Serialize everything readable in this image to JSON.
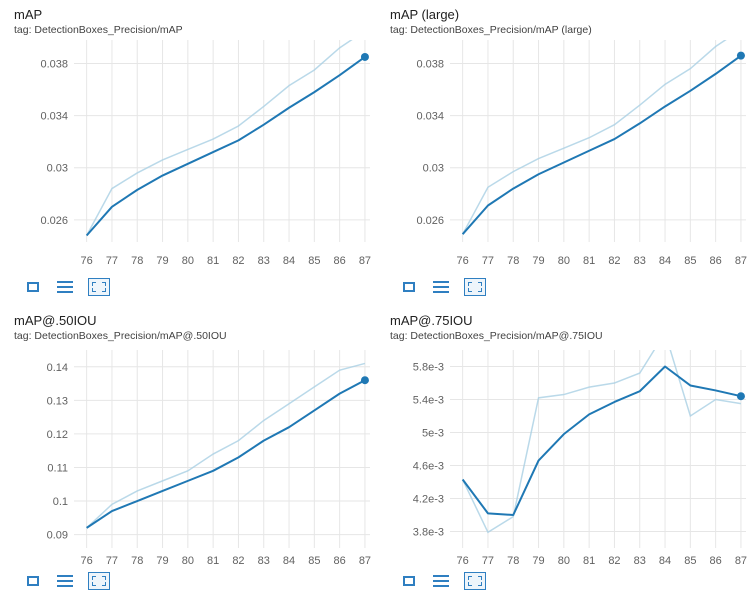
{
  "toolbar": {
    "fullscreen_icon": "fullscreen-icon",
    "legend_icon": "list-icon",
    "fit_domain_icon": "fit-domain-icon"
  },
  "colors": {
    "smoothed": "#1f78b4",
    "raw": "#a9cfe3",
    "grid": "#e6e6e6"
  },
  "chart_data": [
    {
      "type": "line",
      "title": "mAP",
      "tag": "tag: DetectionBoxes_Precision/mAP",
      "x": [
        76,
        77,
        78,
        79,
        80,
        81,
        82,
        83,
        84,
        85,
        86,
        87
      ],
      "xlim": [
        75.5,
        87.2
      ],
      "ylim": [
        0.0243,
        0.0398
      ],
      "yticks": [
        0.026,
        0.03,
        0.034,
        0.038
      ],
      "ytick_labels": [
        "0.026",
        "0.03",
        "0.034",
        "0.038"
      ],
      "series": [
        {
          "values": [
            0.0248,
            0.0284,
            0.0296,
            0.0306,
            0.0314,
            0.0322,
            0.0332,
            0.0347,
            0.0363,
            0.0375,
            0.0392,
            0.0405
          ]
        },
        {
          "values": [
            0.0248,
            0.027,
            0.0283,
            0.0294,
            0.0303,
            0.0312,
            0.0321,
            0.0333,
            0.0346,
            0.0358,
            0.0371,
            0.0385
          ]
        }
      ]
    },
    {
      "type": "line",
      "title": "mAP (large)",
      "tag": "tag: DetectionBoxes_Precision/mAP (large)",
      "x": [
        76,
        77,
        78,
        79,
        80,
        81,
        82,
        83,
        84,
        85,
        86,
        87
      ],
      "xlim": [
        75.5,
        87.2
      ],
      "ylim": [
        0.0243,
        0.0398
      ],
      "yticks": [
        0.026,
        0.03,
        0.034,
        0.038
      ],
      "ytick_labels": [
        "0.026",
        "0.03",
        "0.034",
        "0.038"
      ],
      "series": [
        {
          "values": [
            0.0249,
            0.0285,
            0.0297,
            0.0307,
            0.0315,
            0.0323,
            0.0333,
            0.0348,
            0.0364,
            0.0376,
            0.0393,
            0.0406
          ]
        },
        {
          "values": [
            0.0249,
            0.0271,
            0.0284,
            0.0295,
            0.0304,
            0.0313,
            0.0322,
            0.0334,
            0.0347,
            0.0359,
            0.0372,
            0.0386
          ]
        }
      ]
    },
    {
      "type": "line",
      "title": "mAP@.50IOU",
      "tag": "tag: DetectionBoxes_Precision/mAP@.50IOU",
      "x": [
        76,
        77,
        78,
        79,
        80,
        81,
        82,
        83,
        84,
        85,
        86,
        87
      ],
      "xlim": [
        75.5,
        87.2
      ],
      "ylim": [
        0.086,
        0.145
      ],
      "yticks": [
        0.09,
        0.1,
        0.11,
        0.12,
        0.13,
        0.14
      ],
      "ytick_labels": [
        "0.09",
        "0.1",
        "0.11",
        "0.12",
        "0.13",
        "0.14"
      ],
      "series": [
        {
          "values": [
            0.092,
            0.099,
            0.103,
            0.106,
            0.109,
            0.114,
            0.118,
            0.124,
            0.129,
            0.134,
            0.139,
            0.141
          ]
        },
        {
          "values": [
            0.092,
            0.097,
            0.1,
            0.103,
            0.106,
            0.109,
            0.113,
            0.118,
            0.122,
            0.127,
            0.132,
            0.136
          ]
        }
      ]
    },
    {
      "type": "line",
      "title": "mAP@.75IOU",
      "tag": "tag: DetectionBoxes_Precision/mAP@.75IOU",
      "x": [
        76,
        77,
        78,
        79,
        80,
        81,
        82,
        83,
        84,
        85,
        86,
        87
      ],
      "xlim": [
        75.5,
        87.2
      ],
      "ylim": [
        0.0036,
        0.006
      ],
      "yticks": [
        0.0038,
        0.0042,
        0.0046,
        0.005,
        0.0054,
        0.0058
      ],
      "ytick_labels": [
        "3.8e-3",
        "4.2e-3",
        "4.6e-3",
        "5e-3",
        "5.4e-3",
        "5.8e-3"
      ],
      "series": [
        {
          "values": [
            0.00443,
            0.00379,
            0.00398,
            0.00542,
            0.00546,
            0.00555,
            0.0056,
            0.00572,
            0.00621,
            0.0052,
            0.0054,
            0.00535
          ]
        },
        {
          "values": [
            0.00443,
            0.00402,
            0.004,
            0.00466,
            0.00498,
            0.00522,
            0.00537,
            0.0055,
            0.0058,
            0.00557,
            0.00551,
            0.00544
          ]
        }
      ]
    }
  ]
}
